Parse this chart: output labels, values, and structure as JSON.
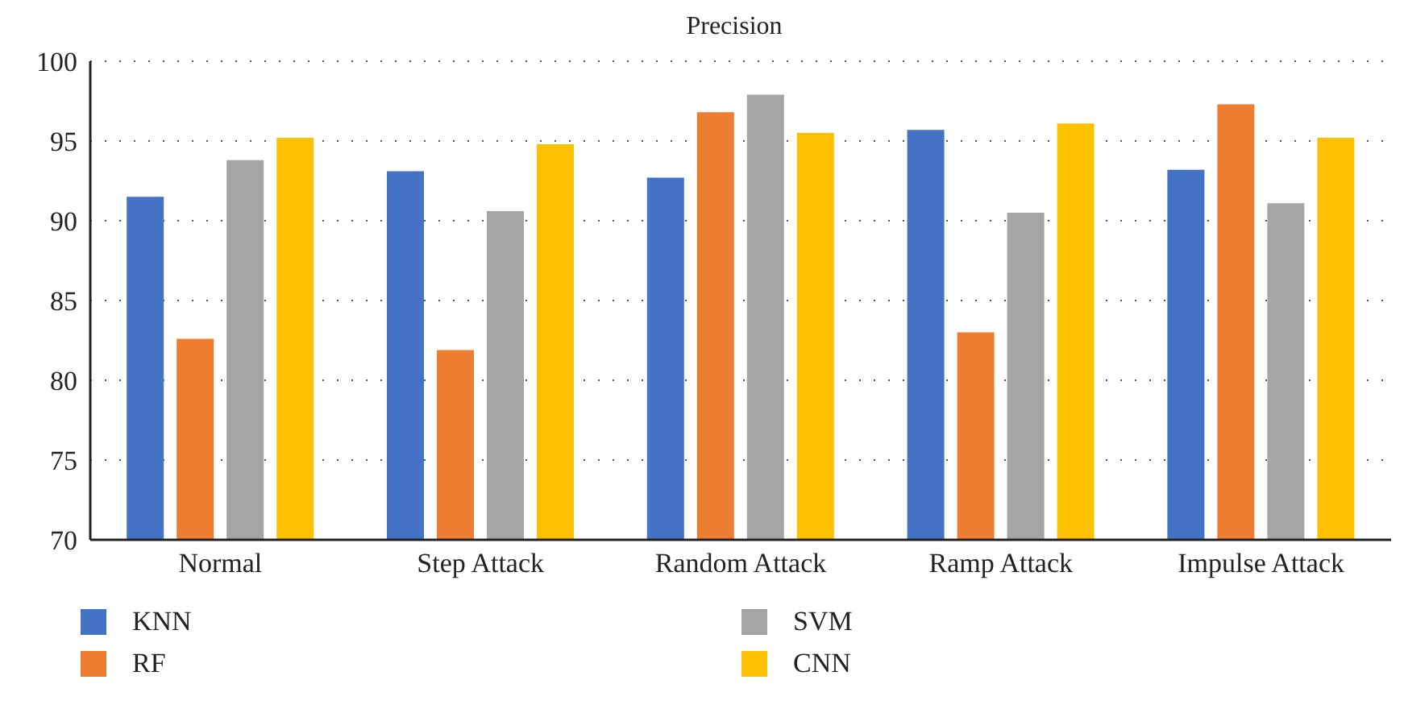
{
  "chart_data": {
    "type": "bar",
    "title": "Precision",
    "categories": [
      "Normal",
      "Step Attack",
      "Random Attack",
      "Ramp Attack",
      "Impulse Attack"
    ],
    "series": [
      {
        "name": "KNN",
        "color": "#4472c4",
        "values": [
          91.5,
          93.1,
          92.7,
          95.7,
          93.2
        ]
      },
      {
        "name": "RF",
        "color": "#ed7d31",
        "values": [
          82.6,
          81.9,
          96.8,
          83.0,
          97.3
        ]
      },
      {
        "name": "SVM",
        "color": "#a5a5a5",
        "values": [
          93.8,
          90.6,
          97.9,
          90.5,
          91.1
        ]
      },
      {
        "name": "CNN",
        "color": "#ffc000",
        "values": [
          95.2,
          94.8,
          95.5,
          96.1,
          95.2
        ]
      }
    ],
    "ylim": [
      70,
      100
    ],
    "yticks": [
      70,
      75,
      80,
      85,
      90,
      95,
      100
    ],
    "grid": "y",
    "legend": "bottom"
  }
}
